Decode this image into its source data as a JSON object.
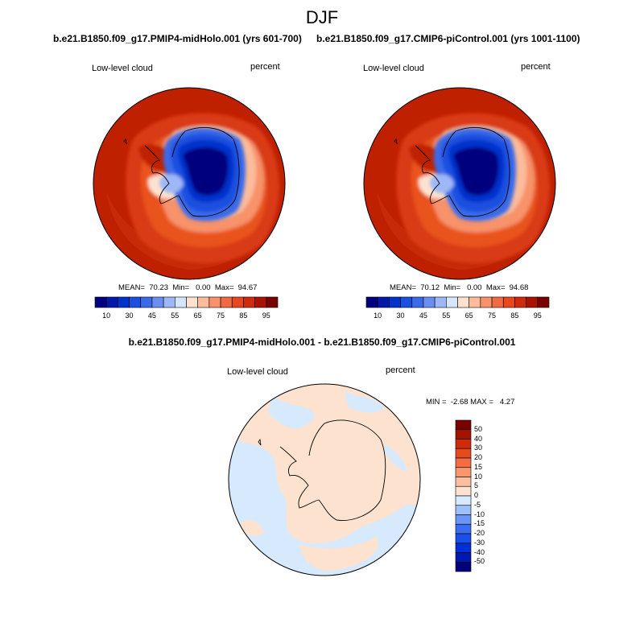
{
  "figure": {
    "season": "DJF"
  },
  "panels": [
    {
      "title": "b.e21.B1850.f09_g17.PMIP4-midHolo.001 (yrs 601-700)",
      "variable": "Low-level cloud",
      "units": "percent",
      "stats": "MEAN=  70.23  Min=   0.00  Max=  94.67"
    },
    {
      "title": "b.e21.B1850.f09_g17.CMIP6-piControl.001 (yrs 1001-1100)",
      "variable": "Low-level cloud",
      "units": "percent",
      "stats": "MEAN=  70.12  Min=   0.00  Max=  94.68"
    },
    {
      "title": "b.e21.B1850.f09_g17.PMIP4-midHolo.001 - b.e21.B1850.f09_g17.CMIP6-piControl.001",
      "variable": "Low-level cloud",
      "units": "percent",
      "stats": "MIN =  -2.68 MAX =   4.27"
    }
  ],
  "colorbars": {
    "absolute": {
      "colors": [
        "#00007f",
        "#0019a8",
        "#0033cc",
        "#1a4fe0",
        "#3a6ae8",
        "#6a8ef0",
        "#9eb8f7",
        "#d5e6fb",
        "#fde2cf",
        "#fbbc9b",
        "#f7926b",
        "#f06a44",
        "#e8471f",
        "#cf2b0c",
        "#a81400",
        "#7a0000"
      ],
      "labels": [
        "10",
        "30",
        "45",
        "55",
        "65",
        "75",
        "85",
        "95"
      ]
    },
    "difference": {
      "colors": [
        "#00007f",
        "#0019b0",
        "#0030d8",
        "#1a4fe8",
        "#3a6ef0",
        "#6a94f5",
        "#9ec0fa",
        "#d6e9fd",
        "#fde3cf",
        "#fbbfa0",
        "#f8966e",
        "#f26c44",
        "#e64a1f",
        "#cc2b0c",
        "#a31400",
        "#7a0000"
      ],
      "labels": [
        "50",
        "40",
        "30",
        "20",
        "15",
        "10",
        "5",
        "0",
        "-5",
        "-10",
        "-15",
        "-20",
        "-30",
        "-40",
        "-50"
      ]
    }
  }
}
